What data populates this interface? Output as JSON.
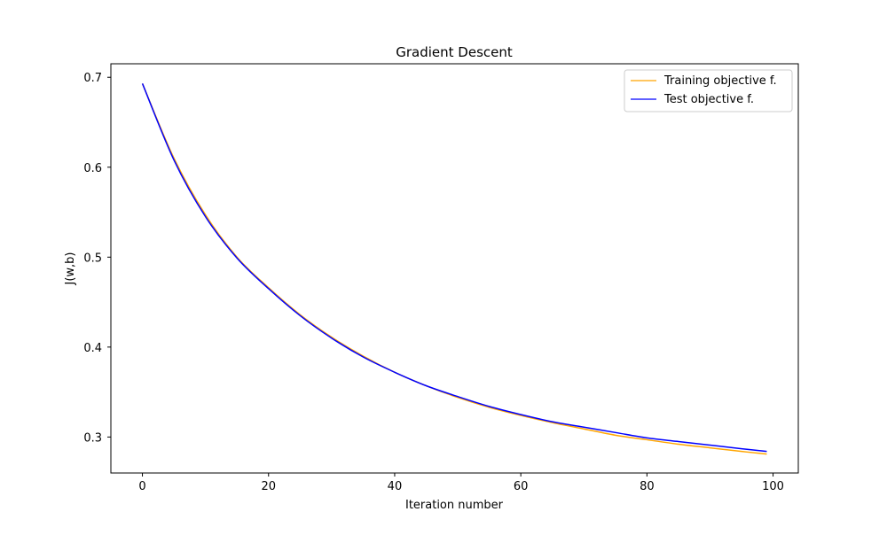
{
  "chart_data": {
    "type": "line",
    "title": "Gradient Descent",
    "xlabel": "Iteration number",
    "ylabel": "J(w,b)",
    "xlim": [
      -5,
      104
    ],
    "ylim": [
      0.26,
      0.715
    ],
    "xticks": [
      0,
      20,
      40,
      60,
      80,
      100
    ],
    "xtick_labels": [
      "0",
      "20",
      "40",
      "60",
      "80",
      "100"
    ],
    "yticks": [
      0.3,
      0.4,
      0.5,
      0.6,
      0.7
    ],
    "ytick_labels": [
      "0.3",
      "0.4",
      "0.5",
      "0.6",
      "0.7"
    ],
    "grid": false,
    "legend": "upper right",
    "series": [
      {
        "name": "Training objective f.",
        "color": "#ffa500",
        "x": [
          0,
          5,
          10,
          15,
          20,
          25,
          30,
          35,
          40,
          45,
          50,
          55,
          60,
          65,
          70,
          75,
          80,
          85,
          90,
          95,
          99
        ],
        "y": [
          0.693,
          0.61,
          0.547,
          0.5,
          0.466,
          0.436,
          0.411,
          0.39,
          0.372,
          0.357,
          0.344,
          0.333,
          0.324,
          0.316,
          0.309,
          0.302,
          0.297,
          0.292,
          0.288,
          0.284,
          0.281
        ]
      },
      {
        "name": "Test objective f.",
        "color": "#0000ff",
        "x": [
          0,
          5,
          10,
          15,
          20,
          25,
          30,
          35,
          40,
          45,
          50,
          55,
          60,
          65,
          70,
          75,
          80,
          85,
          90,
          95,
          99
        ],
        "y": [
          0.693,
          0.608,
          0.545,
          0.499,
          0.465,
          0.435,
          0.41,
          0.389,
          0.372,
          0.357,
          0.345,
          0.334,
          0.325,
          0.317,
          0.311,
          0.305,
          0.299,
          0.295,
          0.291,
          0.287,
          0.284
        ]
      }
    ]
  }
}
